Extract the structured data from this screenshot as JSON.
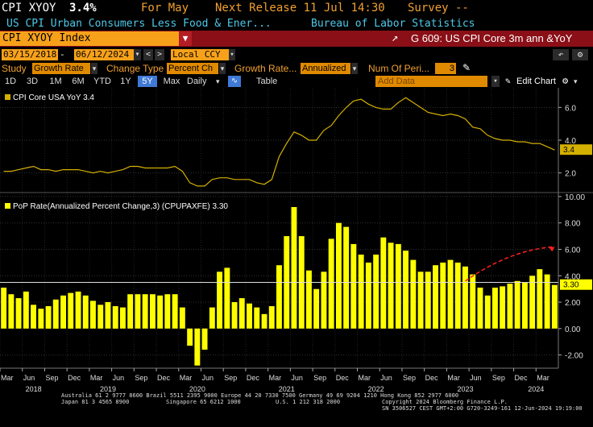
{
  "header": {
    "ticker": "CPI XYOY",
    "value": "3.4%",
    "for_label": "For May",
    "next_release": "Next Release 11 Jul 14:30",
    "survey": "Survey --",
    "description": "US CPI Urban Consumers Less Food & Ener...",
    "source": "Bureau of Labor Statistics"
  },
  "security_bar": {
    "security": "CPI XYOY Index",
    "title": "G 609: US CPI Core 3m ann &YoY",
    "export_icon": "export-icon"
  },
  "controls": {
    "start_date": "03/15/2018",
    "end_date": "06/12/2024",
    "currency": "Local CCY",
    "study_label": "Study",
    "study_value": "Growth Rate",
    "change_type_label": "Change Type",
    "change_type_value": "Percent Ch",
    "growth_rate_label": "Growth Rate...",
    "growth_rate_value": "Annualized",
    "num_periods_label": "Num Of Peri...",
    "num_periods_value": "3",
    "add_data": "Add Data",
    "edit_chart": "Edit Chart",
    "table_label": "Table",
    "periodicity": "Daily",
    "ranges": [
      "1D",
      "3D",
      "1M",
      "6M",
      "YTD",
      "1Y",
      "5Y",
      "Max"
    ],
    "active_range": "5Y"
  },
  "chart_data": [
    {
      "type": "line",
      "legend": "CPI Core USA YoY 3.4",
      "series": [
        {
          "name": "CPI Core USA YoY",
          "color": "#d4b000",
          "x": [
            "2018-03",
            "2018-04",
            "2018-05",
            "2018-06",
            "2018-07",
            "2018-08",
            "2018-09",
            "2018-10",
            "2018-11",
            "2018-12",
            "2019-01",
            "2019-02",
            "2019-03",
            "2019-04",
            "2019-05",
            "2019-06",
            "2019-07",
            "2019-08",
            "2019-09",
            "2019-10",
            "2019-11",
            "2019-12",
            "2020-01",
            "2020-02",
            "2020-03",
            "2020-04",
            "2020-05",
            "2020-06",
            "2020-07",
            "2020-08",
            "2020-09",
            "2020-10",
            "2020-11",
            "2020-12",
            "2021-01",
            "2021-02",
            "2021-03",
            "2021-04",
            "2021-05",
            "2021-06",
            "2021-07",
            "2021-08",
            "2021-09",
            "2021-10",
            "2021-11",
            "2021-12",
            "2022-01",
            "2022-02",
            "2022-03",
            "2022-04",
            "2022-05",
            "2022-06",
            "2022-07",
            "2022-08",
            "2022-09",
            "2022-10",
            "2022-11",
            "2022-12",
            "2023-01",
            "2023-02",
            "2023-03",
            "2023-04",
            "2023-05",
            "2023-06",
            "2023-07",
            "2023-08",
            "2023-09",
            "2023-10",
            "2023-11",
            "2023-12",
            "2024-01",
            "2024-02",
            "2024-03",
            "2024-04",
            "2024-05"
          ],
          "values": [
            2.1,
            2.1,
            2.2,
            2.3,
            2.4,
            2.2,
            2.2,
            2.1,
            2.2,
            2.2,
            2.2,
            2.1,
            2.0,
            2.1,
            2.0,
            2.1,
            2.2,
            2.4,
            2.4,
            2.3,
            2.3,
            2.3,
            2.3,
            2.4,
            2.1,
            1.4,
            1.2,
            1.2,
            1.6,
            1.7,
            1.7,
            1.6,
            1.6,
            1.6,
            1.4,
            1.3,
            1.6,
            3.0,
            3.8,
            4.5,
            4.3,
            4.0,
            4.0,
            4.6,
            4.9,
            5.5,
            6.0,
            6.4,
            6.5,
            6.2,
            6.0,
            5.9,
            5.9,
            6.3,
            6.6,
            6.3,
            6.0,
            5.7,
            5.6,
            5.5,
            5.6,
            5.5,
            5.3,
            4.8,
            4.7,
            4.3,
            4.1,
            4.0,
            4.0,
            3.9,
            3.9,
            3.8,
            3.8,
            3.6,
            3.4
          ],
          "last_label": "3.4"
        }
      ],
      "y_ticks": [
        2.0,
        4.0,
        6.0
      ],
      "ylim": [
        0.8,
        7.2
      ]
    },
    {
      "type": "bar",
      "legend": "PoP Rate(Annualized Percent Change,3) (CPUPAXFE) 3.30",
      "series": [
        {
          "name": "PoP Rate(Annualized Percent Change,3) (CPUPAXFE)",
          "color": "#ffff00",
          "values": [
            3.1,
            2.6,
            2.3,
            2.8,
            1.8,
            1.5,
            1.7,
            2.2,
            2.5,
            2.7,
            2.8,
            2.5,
            2.1,
            1.8,
            2.0,
            1.7,
            1.6,
            2.6,
            2.6,
            2.6,
            2.6,
            2.5,
            2.6,
            2.6,
            1.6,
            -1.3,
            -2.8,
            -1.6,
            1.6,
            4.3,
            4.6,
            2.0,
            2.3,
            1.9,
            1.6,
            1.1,
            1.7,
            4.8,
            7.0,
            9.2,
            7.0,
            4.4,
            3.0,
            4.3,
            6.8,
            8.0,
            7.7,
            6.4,
            5.6,
            5.0,
            5.6,
            6.9,
            6.5,
            6.4,
            5.9,
            5.2,
            4.3,
            4.3,
            4.8,
            5.0,
            5.2,
            5.0,
            4.7,
            4.1,
            3.1,
            2.5,
            3.1,
            3.2,
            3.4,
            3.6,
            3.5,
            4.0,
            4.5,
            4.1,
            3.3
          ],
          "last_label": "3.30"
        }
      ],
      "y_ticks": [
        -2.0,
        0.0,
        2.0,
        4.0,
        6.0,
        8.0,
        10.0
      ],
      "ylim": [
        -3.0,
        10.3
      ],
      "reference_line": 3.5,
      "trend_arrow_color": "#ff2020"
    }
  ],
  "x_axis": {
    "month_labels": [
      "Mar",
      "Jun",
      "Sep",
      "Dec",
      "Mar",
      "Jun",
      "Sep",
      "Dec",
      "Mar",
      "Jun",
      "Sep",
      "Dec",
      "Mar",
      "Jun",
      "Sep",
      "Dec",
      "Mar",
      "Jun",
      "Sep",
      "Dec",
      "Mar",
      "Jun",
      "Sep",
      "Dec",
      "Mar"
    ],
    "year_labels": [
      "2018",
      "2019",
      "2020",
      "2021",
      "2022",
      "2023",
      "2024"
    ]
  },
  "footer": {
    "line1": "Australia 61 2 9777 8600 Brazil 5511 2395 9000 Europe 44 20 7330 7500 Germany 49 69 9204 1210 Hong Kong 852 2977 6000",
    "line2a": "Japan 81 3 4565 8900",
    "line2b": "Singapore 65 6212 1000",
    "line2c": "U.S. 1 212 318 2000",
    "line2d": "Copyright 2024 Bloomberg Finance L.P.",
    "line3": "SN 3506527 CEST GMT+2:00 G720-3249-161 12-Jun-2024 19:19:00"
  }
}
